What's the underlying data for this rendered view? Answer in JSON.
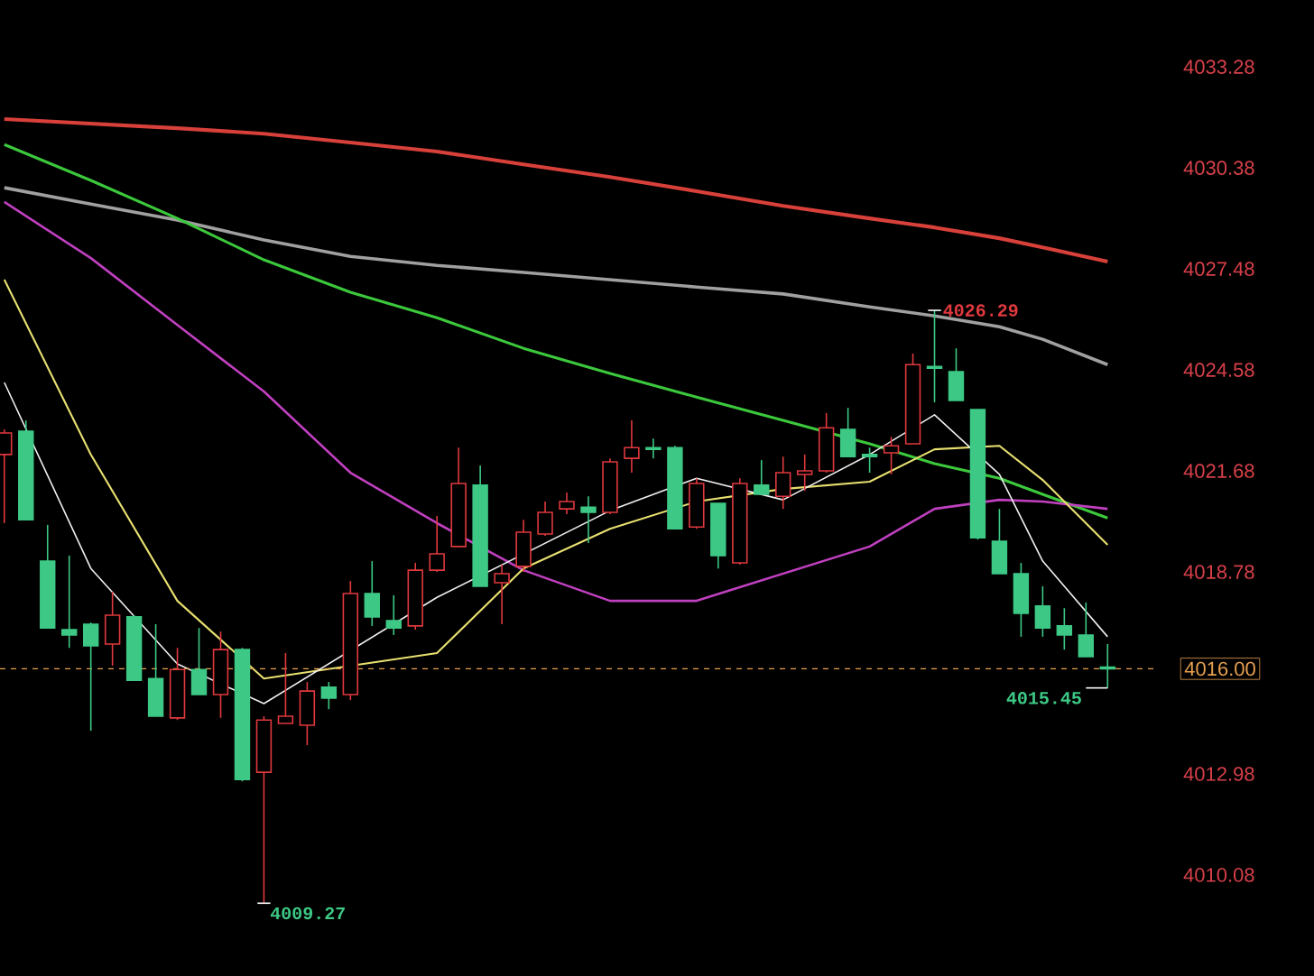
{
  "chart_data": {
    "type": "candlestick",
    "categories": [
      null,
      null,
      null,
      null,
      null,
      null,
      null,
      null,
      null,
      null,
      null,
      null,
      null,
      null,
      null,
      null,
      null,
      null,
      null,
      null,
      null,
      null,
      null,
      null,
      null,
      null,
      null,
      null,
      null,
      null,
      null,
      null,
      null,
      null,
      null,
      null,
      null,
      null,
      null,
      null,
      null,
      null,
      null,
      null,
      null,
      null,
      null,
      null,
      null,
      null,
      null,
      null
    ],
    "ohlc": [
      [
        4022.15,
        4022.87,
        4020.18,
        4022.77
      ],
      [
        4022.82,
        4023.13,
        4020.28,
        4020.28
      ],
      [
        4019.09,
        4020.13,
        4017.17,
        4017.17
      ],
      [
        4017.12,
        4019.25,
        4016.6,
        4016.97
      ],
      [
        4017.28,
        4017.33,
        4014.22,
        4016.66
      ],
      [
        4016.71,
        4018.21,
        4016.09,
        4017.54
      ],
      [
        4017.49,
        4017.54,
        4015.67,
        4015.67
      ],
      [
        4015.72,
        4017.28,
        4014.64,
        4014.64
      ],
      [
        4014.59,
        4016.6,
        4014.53,
        4015.98
      ],
      [
        4015.98,
        4017.17,
        4015.26,
        4015.26
      ],
      [
        4015.26,
        4017.07,
        4014.59,
        4016.55
      ],
      [
        4016.55,
        4016.6,
        4012.77,
        4012.82
      ],
      [
        4013.03,
        4014.64,
        4009.27,
        4014.53
      ],
      [
        4014.43,
        4016.45,
        4014.43,
        4014.64
      ],
      [
        4014.38,
        4015.62,
        4013.81,
        4015.36
      ],
      [
        4015.47,
        4015.62,
        4014.84,
        4015.16
      ],
      [
        4015.26,
        4018.52,
        4015.1,
        4018.16
      ],
      [
        4018.16,
        4019.09,
        4017.23,
        4017.49
      ],
      [
        4017.38,
        4018.11,
        4016.97,
        4017.17
      ],
      [
        4017.23,
        4019.04,
        4017.12,
        4018.83
      ],
      [
        4018.83,
        4020.39,
        4018.78,
        4019.3
      ],
      [
        4019.51,
        4022.35,
        4019.51,
        4021.32
      ],
      [
        4021.27,
        4021.84,
        4018.37,
        4018.37
      ],
      [
        4018.47,
        4018.99,
        4017.28,
        4018.73
      ],
      [
        4018.94,
        4020.28,
        4018.78,
        4019.92
      ],
      [
        4019.87,
        4020.8,
        4019.82,
        4020.49
      ],
      [
        4020.59,
        4021.06,
        4020.44,
        4020.8
      ],
      [
        4020.64,
        4020.95,
        4019.61,
        4020.49
      ],
      [
        4020.49,
        4022.04,
        4020.44,
        4021.94
      ],
      [
        4022.04,
        4023.13,
        4021.63,
        4022.35
      ],
      [
        4022.35,
        4022.61,
        4022.04,
        4022.3
      ],
      [
        4022.35,
        4022.4,
        4020.02,
        4020.02
      ],
      [
        4020.07,
        4021.47,
        4020.02,
        4021.32
      ],
      [
        4020.75,
        4020.75,
        4018.88,
        4019.25
      ],
      [
        4019.04,
        4021.47,
        4018.99,
        4021.32
      ],
      [
        4021.27,
        4021.99,
        4021.01,
        4021.01
      ],
      [
        4020.95,
        4022.09,
        4020.59,
        4021.63
      ],
      [
        4021.58,
        4022.15,
        4021.11,
        4021.68
      ],
      [
        4021.68,
        4023.34,
        4021.63,
        4022.92
      ],
      [
        4022.87,
        4023.49,
        4022.09,
        4022.09
      ],
      [
        4022.15,
        4022.35,
        4021.63,
        4022.09
      ],
      [
        4022.2,
        4022.66,
        4021.58,
        4022.4
      ],
      [
        4022.46,
        4025.05,
        4022.46,
        4024.73
      ],
      [
        4024.68,
        4026.29,
        4023.65,
        4024.63
      ],
      [
        4024.53,
        4025.2,
        4023.7,
        4023.7
      ],
      [
        4023.44,
        4023.44,
        4019.71,
        4019.76
      ],
      [
        4019.66,
        4020.59,
        4018.73,
        4018.73
      ],
      [
        4018.73,
        4019.04,
        4016.92,
        4017.59
      ],
      [
        4017.8,
        4018.37,
        4016.92,
        4017.17
      ],
      [
        4017.23,
        4017.74,
        4016.55,
        4016.97
      ],
      [
        4016.97,
        4017.9,
        4016.35,
        4016.35
      ],
      [
        4016.05,
        4016.71,
        4015.45,
        4016.0
      ]
    ],
    "colors": [
      "#e0393e",
      "#3dc985",
      "#3dc985",
      "#3dc985",
      "#3dc985",
      "#e0393e",
      "#3dc985",
      "#3dc985",
      "#e0393e",
      "#3dc985",
      "#e0393e",
      "#3dc985",
      "#e0393e",
      "#e0393e",
      "#e0393e",
      "#3dc985",
      "#e0393e",
      "#3dc985",
      "#3dc985",
      "#e0393e",
      "#e0393e",
      "#e0393e",
      "#3dc985",
      "#e0393e",
      "#e0393e",
      "#e0393e",
      "#e0393e",
      "#3dc985",
      "#e0393e",
      "#e0393e",
      "#3dc985",
      "#3dc985",
      "#e0393e",
      "#3dc985",
      "#e0393e",
      "#3dc985",
      "#e0393e",
      "#e0393e",
      "#e0393e",
      "#3dc985",
      "#3dc985",
      "#e0393e",
      "#e0393e",
      "#3dc985",
      "#3dc985",
      "#3dc985",
      "#3dc985",
      "#3dc985",
      "#3dc985",
      "#3dc985",
      "#3dc985",
      "#3dc985"
    ],
    "series": [
      {
        "type": "line",
        "color": "#d8403a",
        "values": [
          4031.78,
          null,
          null,
          null,
          4031.65,
          null,
          null,
          null,
          4031.52,
          null,
          null,
          null,
          4031.36,
          null,
          null,
          null,
          4031.11,
          null,
          null,
          null,
          4030.85,
          null,
          null,
          null,
          4030.48,
          null,
          null,
          null,
          4030.12,
          null,
          null,
          null,
          4029.71,
          null,
          null,
          null,
          4029.29,
          null,
          null,
          null,
          4028.93,
          null,
          null,
          4028.67,
          null,
          null,
          4028.36,
          null,
          4028.1,
          null,
          null,
          4027.69
        ]
      },
      {
        "type": "line",
        "color": "#a0a0a0",
        "values": [
          4029.81,
          null,
          null,
          null,
          4029.34,
          null,
          null,
          null,
          4028.88,
          null,
          null,
          null,
          4028.31,
          null,
          null,
          null,
          4027.84,
          null,
          null,
          null,
          4027.58,
          null,
          null,
          null,
          4027.38,
          null,
          null,
          null,
          4027.17,
          null,
          null,
          null,
          4026.96,
          null,
          null,
          null,
          4026.76,
          null,
          null,
          null,
          4026.39,
          null,
          null,
          4026.13,
          null,
          null,
          4025.82,
          null,
          4025.46,
          null,
          null,
          4024.73
        ]
      },
      {
        "type": "line",
        "color": "#3cc83c",
        "values": [
          4031.05,
          null,
          null,
          null,
          4030.02,
          null,
          null,
          null,
          4028.93,
          null,
          null,
          null,
          4027.74,
          null,
          null,
          null,
          4026.81,
          null,
          null,
          null,
          4026.08,
          null,
          null,
          null,
          4025.2,
          null,
          null,
          null,
          4024.48,
          null,
          null,
          null,
          4023.8,
          null,
          null,
          null,
          4023.13,
          null,
          null,
          null,
          4022.46,
          null,
          null,
          4021.89,
          null,
          null,
          4021.47,
          null,
          4021.01,
          null,
          null,
          4020.33
        ]
      },
      {
        "type": "line",
        "color": "#c040c0",
        "values": [
          4029.4,
          null,
          null,
          null,
          4027.79,
          null,
          null,
          null,
          4025.87,
          null,
          null,
          null,
          4023.96,
          null,
          null,
          null,
          4021.63,
          null,
          null,
          null,
          4020.18,
          null,
          null,
          null,
          4018.83,
          null,
          null,
          null,
          4017.95,
          null,
          null,
          null,
          4017.95,
          null,
          null,
          null,
          4018.73,
          null,
          null,
          null,
          4019.51,
          null,
          null,
          4020.59,
          null,
          null,
          4020.85,
          null,
          4020.8,
          null,
          null,
          4020.59
        ]
      },
      {
        "type": "line",
        "color": "#e8e070",
        "values": [
          4027.17,
          null,
          null,
          null,
          4022.15,
          null,
          null,
          null,
          4017.95,
          null,
          null,
          null,
          4015.72,
          null,
          null,
          null,
          null,
          null,
          null,
          null,
          4016.45,
          null,
          null,
          null,
          4018.88,
          null,
          null,
          null,
          4020.02,
          null,
          null,
          null,
          4020.8,
          null,
          null,
          null,
          4021.16,
          null,
          null,
          null,
          4021.37,
          null,
          null,
          4022.3,
          null,
          null,
          4022.4,
          null,
          4021.42,
          null,
          null,
          4019.56
        ]
      },
      {
        "type": "line",
        "color": "#f0f0f0",
        "values": [
          4024.22,
          null,
          null,
          null,
          4018.88,
          null,
          null,
          null,
          4016.14,
          null,
          null,
          null,
          4015.0,
          null,
          null,
          null,
          null,
          null,
          null,
          null,
          4018.05,
          null,
          null,
          null,
          null,
          null,
          null,
          null,
          4020.54,
          null,
          null,
          null,
          4021.47,
          null,
          null,
          null,
          4020.85,
          null,
          null,
          null,
          4022.15,
          null,
          null,
          4023.29,
          null,
          null,
          4021.58,
          null,
          4019.09,
          null,
          null,
          4016.92
        ]
      }
    ],
    "ylim": [
      4007.18,
      4035.2
    ],
    "yticks": [
      4010.08,
      4012.98,
      4018.78,
      4021.68,
      4024.58,
      4027.48,
      4030.38,
      4033.28
    ],
    "ref_lines": [
      {
        "axis": "y",
        "value": 4016.0,
        "label": "4016.00",
        "color": "#e8a050",
        "line_style": "dashed"
      }
    ],
    "annotations": [
      "4026.29",
      "4009.27",
      "4015.45"
    ]
  }
}
